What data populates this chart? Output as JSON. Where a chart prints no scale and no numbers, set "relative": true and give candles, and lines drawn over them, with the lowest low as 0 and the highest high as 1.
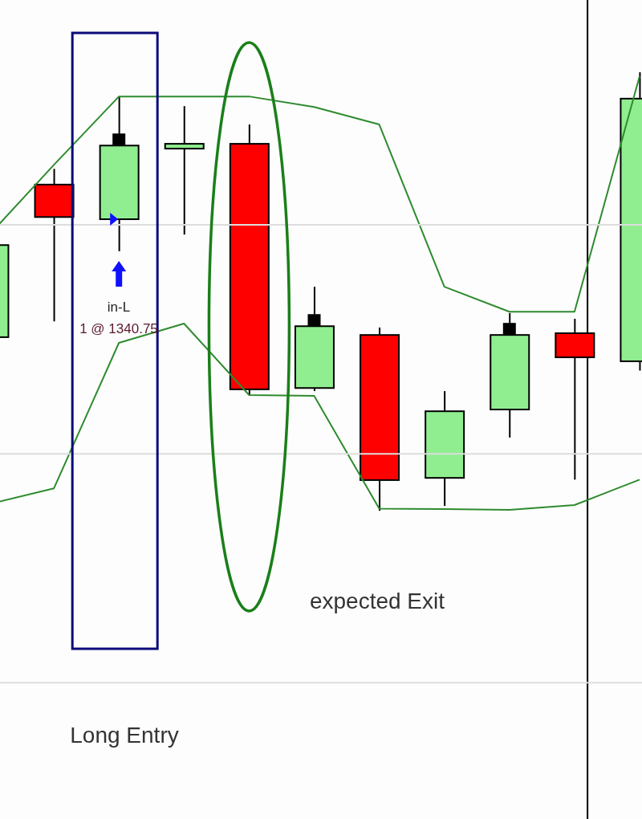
{
  "chart_data": {
    "type": "candlestick",
    "relative": true,
    "categories": [
      null,
      null,
      null,
      null,
      null,
      null,
      null,
      null,
      null,
      null,
      null
    ],
    "ohlc": [
      [
        0.396,
        0.634,
        0.377,
        0.606
      ],
      [
        0.744,
        0.78,
        0.432,
        0.67
      ],
      [
        0.665,
        0.945,
        0.592,
        0.833
      ],
      [
        0.826,
        0.923,
        0.63,
        0.837
      ],
      [
        0.837,
        0.881,
        0.264,
        0.277
      ],
      [
        0.28,
        0.511,
        0.273,
        0.421
      ],
      [
        0.401,
        0.418,
        0,
        0.07
      ],
      [
        0.075,
        0.273,
        0.011,
        0.227
      ],
      [
        0.231,
        0.451,
        0.167,
        0.401
      ],
      [
        0.405,
        0.438,
        0.071,
        0.35
      ],
      [
        0.341,
        1,
        0.32,
        0.94
      ]
    ],
    "colors": [
      "#90ee90",
      "#ff0000",
      "#90ee90",
      "#90ee90",
      "#ff0000",
      "#90ee90",
      "#ff0000",
      "#90ee90",
      "#90ee90",
      "#ff0000",
      "#90ee90"
    ],
    "series": [
      {
        "type": "line",
        "color": "#2e8b2e",
        "values": [
          0.628,
          0.789,
          0.945,
          0.945,
          0.945,
          0.921,
          0.881,
          0.511,
          0.454,
          0.454,
          0.991
        ]
      },
      {
        "type": "line",
        "color": "#2e8b2e",
        "values": [
          0.015,
          0.051,
          0.383,
          0.427,
          0.264,
          0.262,
          0.005,
          0.004,
          0.002,
          0.013,
          0.071
        ]
      }
    ],
    "ref_lines": [
      {
        "axis": "y",
        "value": 0.652,
        "color": "#dddddd"
      },
      {
        "axis": "y",
        "value": 0.13,
        "color": "#dddddd"
      },
      {
        "axis": "y",
        "value": -0.392,
        "color": "#dddddd"
      }
    ],
    "annotations": [
      "in-L",
      "1 @ 1340.75",
      "expected Exit",
      "Long Entry"
    ]
  }
}
